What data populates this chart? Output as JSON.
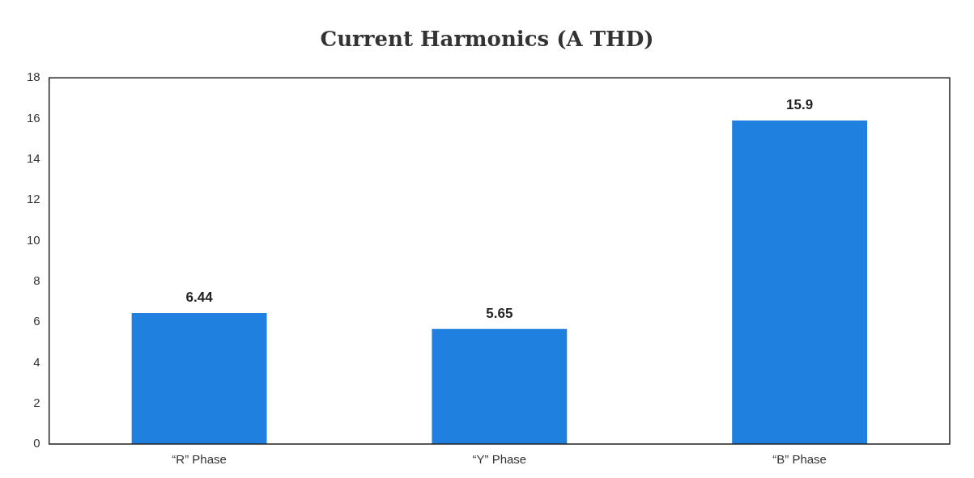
{
  "chart_data": {
    "type": "bar",
    "title": "Current Harmonics (A THD)",
    "categories": [
      "“R” Phase",
      "“Y” Phase",
      "“B” Phase"
    ],
    "values": [
      6.44,
      5.65,
      15.9
    ],
    "color": "#1f80e0",
    "ylim": [
      0,
      18
    ],
    "yticks": [
      0,
      2,
      4,
      6,
      8,
      10,
      12,
      14,
      16,
      18
    ],
    "data_labels": true,
    "grid": false,
    "legend": false
  }
}
